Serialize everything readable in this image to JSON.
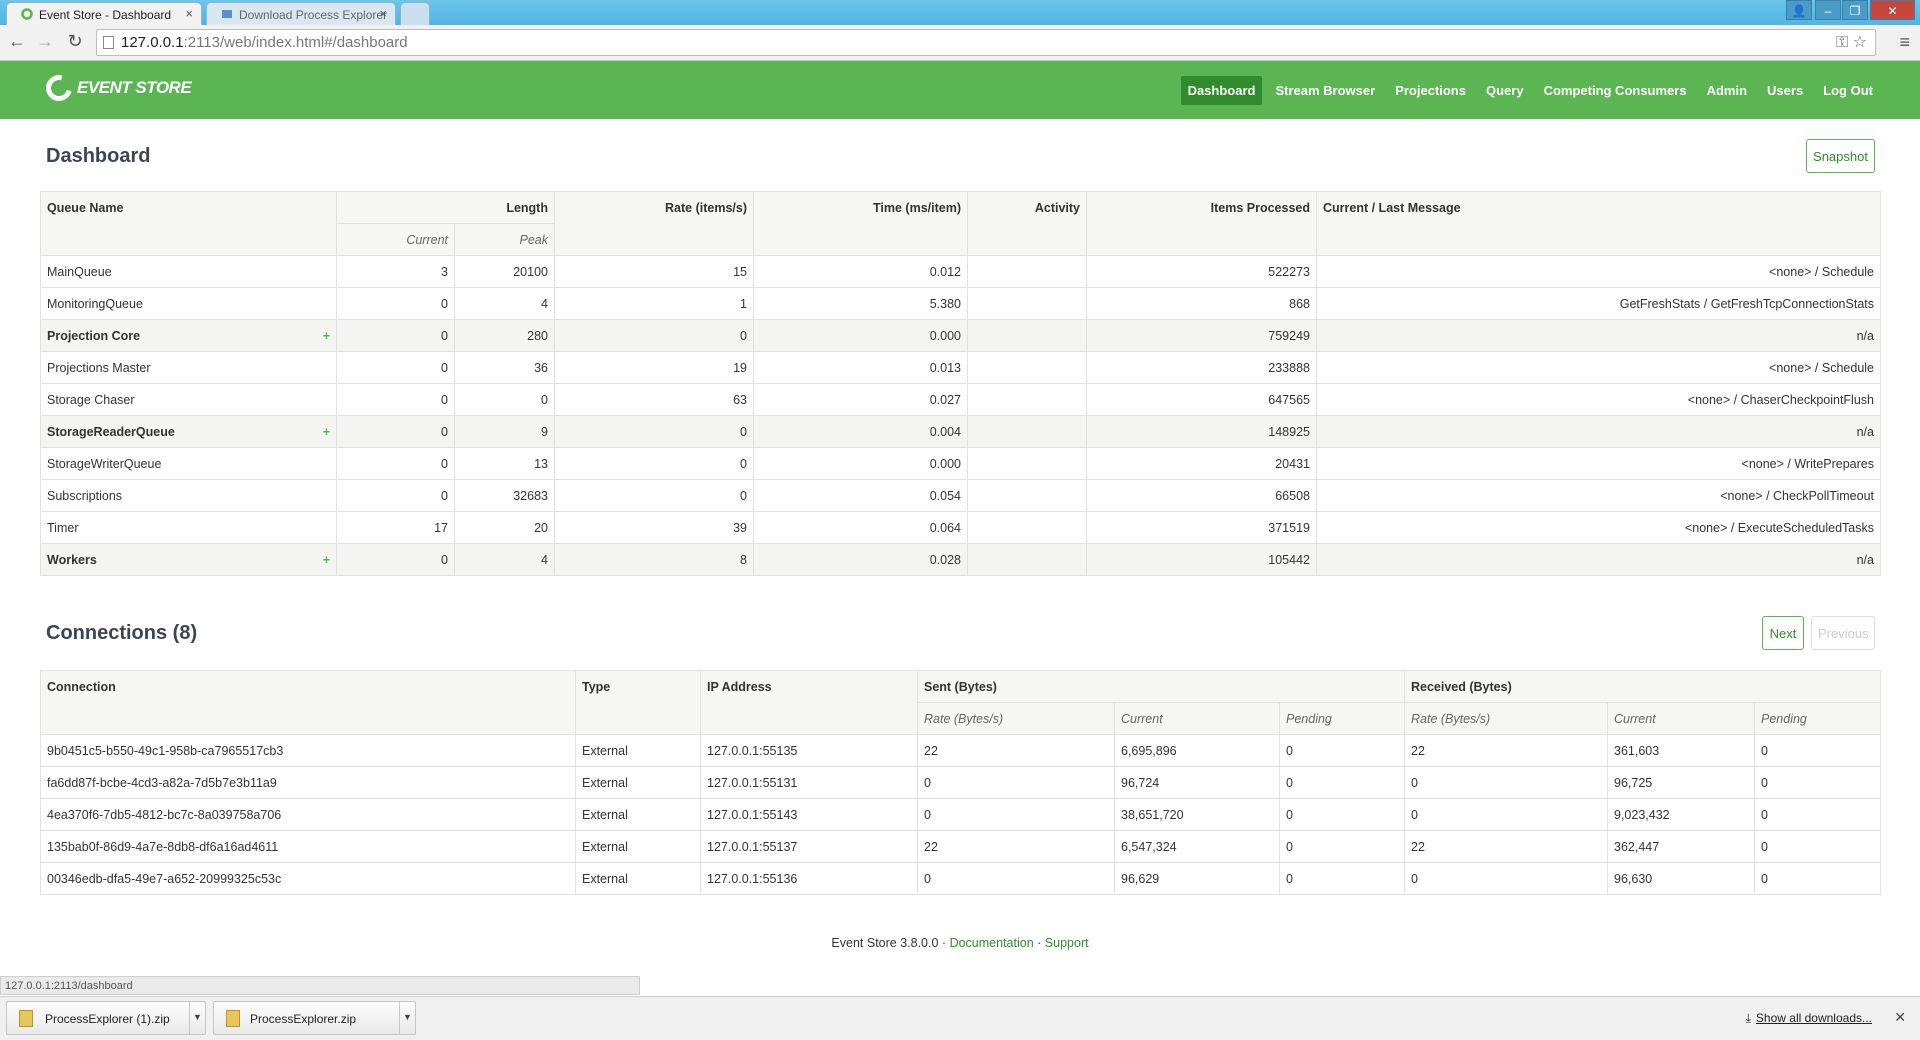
{
  "browser": {
    "tabs": [
      {
        "title": "Event Store - Dashboard",
        "active": true
      },
      {
        "title": "Download Process Explorer",
        "active": false
      }
    ],
    "url_host": "127.0.0.1",
    "url_path": ":2113/web/index.html#/dashboard",
    "status_url": "127.0.0.1:2113/dashboard"
  },
  "app": {
    "logo_text": "EVENT STORE",
    "nav": [
      "Dashboard",
      "Stream Browser",
      "Projections",
      "Query",
      "Competing Consumers",
      "Admin",
      "Users",
      "Log Out"
    ],
    "active_nav": "Dashboard"
  },
  "dashboard": {
    "title": "Dashboard",
    "snapshot_label": "Snapshot",
    "headers": {
      "queue_name": "Queue Name",
      "length": "Length",
      "current": "Current",
      "peak": "Peak",
      "rate": "Rate (items/s)",
      "time": "Time (ms/item)",
      "activity": "Activity",
      "items_processed": "Items Processed",
      "message": "Current / Last Message"
    },
    "queues": [
      {
        "name": "MainQueue",
        "group": false,
        "current": "3",
        "peak": "20100",
        "rate": "15",
        "time": "0.012",
        "activity": "",
        "processed": "522273",
        "message": "<none> / Schedule"
      },
      {
        "name": "MonitoringQueue",
        "group": false,
        "current": "0",
        "peak": "4",
        "rate": "1",
        "time": "5.380",
        "activity": "",
        "processed": "868",
        "message": "GetFreshStats / GetFreshTcpConnectionStats"
      },
      {
        "name": "Projection Core",
        "group": true,
        "current": "0",
        "peak": "280",
        "rate": "0",
        "time": "0.000",
        "activity": "",
        "processed": "759249",
        "message": "n/a"
      },
      {
        "name": "Projections Master",
        "group": false,
        "current": "0",
        "peak": "36",
        "rate": "19",
        "time": "0.013",
        "activity": "",
        "processed": "233888",
        "message": "<none> / Schedule"
      },
      {
        "name": "Storage Chaser",
        "group": false,
        "current": "0",
        "peak": "0",
        "rate": "63",
        "time": "0.027",
        "activity": "",
        "processed": "647565",
        "message": "<none> / ChaserCheckpointFlush"
      },
      {
        "name": "StorageReaderQueue",
        "group": true,
        "current": "0",
        "peak": "9",
        "rate": "0",
        "time": "0.004",
        "activity": "",
        "processed": "148925",
        "message": "n/a"
      },
      {
        "name": "StorageWriterQueue",
        "group": false,
        "current": "0",
        "peak": "13",
        "rate": "0",
        "time": "0.000",
        "activity": "",
        "processed": "20431",
        "message": "<none> / WritePrepares"
      },
      {
        "name": "Subscriptions",
        "group": false,
        "current": "0",
        "peak": "32683",
        "rate": "0",
        "time": "0.054",
        "activity": "",
        "processed": "66508",
        "message": "<none> / CheckPollTimeout"
      },
      {
        "name": "Timer",
        "group": false,
        "current": "17",
        "peak": "20",
        "rate": "39",
        "time": "0.064",
        "activity": "",
        "processed": "371519",
        "message": "<none> / ExecuteScheduledTasks"
      },
      {
        "name": "Workers",
        "group": true,
        "current": "0",
        "peak": "4",
        "rate": "8",
        "time": "0.028",
        "activity": "",
        "processed": "105442",
        "message": "n/a"
      }
    ]
  },
  "connections": {
    "title": "Connections (8)",
    "next_label": "Next",
    "previous_label": "Previous",
    "headers": {
      "connection": "Connection",
      "type": "Type",
      "ip": "IP Address",
      "sent": "Sent (Bytes)",
      "received": "Received (Bytes)",
      "rate": "Rate (Bytes/s)",
      "current": "Current",
      "pending": "Pending"
    },
    "rows": [
      {
        "id": "9b0451c5-b550-49c1-958b-ca7965517cb3",
        "type": "External",
        "ip": "127.0.0.1:55135",
        "sent_rate": "22",
        "sent_current": "6,695,896",
        "sent_pending": "0",
        "recv_rate": "22",
        "recv_current": "361,603",
        "recv_pending": "0"
      },
      {
        "id": "fa6dd87f-bcbe-4cd3-a82a-7d5b7e3b11a9",
        "type": "External",
        "ip": "127.0.0.1:55131",
        "sent_rate": "0",
        "sent_current": "96,724",
        "sent_pending": "0",
        "recv_rate": "0",
        "recv_current": "96,725",
        "recv_pending": "0"
      },
      {
        "id": "4ea370f6-7db5-4812-bc7c-8a039758a706",
        "type": "External",
        "ip": "127.0.0.1:55143",
        "sent_rate": "0",
        "sent_current": "38,651,720",
        "sent_pending": "0",
        "recv_rate": "0",
        "recv_current": "9,023,432",
        "recv_pending": "0"
      },
      {
        "id": "135bab0f-86d9-4a7e-8db8-df6a16ad4611",
        "type": "External",
        "ip": "127.0.0.1:55137",
        "sent_rate": "22",
        "sent_current": "6,547,324",
        "sent_pending": "0",
        "recv_rate": "22",
        "recv_current": "362,447",
        "recv_pending": "0"
      },
      {
        "id": "00346edb-dfa5-49e7-a652-20999325c53c",
        "type": "External",
        "ip": "127.0.0.1:55136",
        "sent_rate": "0",
        "sent_current": "96,629",
        "sent_pending": "0",
        "recv_rate": "0",
        "recv_current": "96,630",
        "recv_pending": "0"
      }
    ]
  },
  "footer": {
    "version": "Event Store 3.8.0.0",
    "separator": "·",
    "documentation": "Documentation",
    "support": "Support"
  },
  "downloads": {
    "items": [
      "ProcessExplorer (1).zip",
      "ProcessExplorer.zip"
    ],
    "show_all": "Show all downloads..."
  },
  "colors": {
    "brand": "#5ab552",
    "active_nav": "#2f8b2c"
  }
}
